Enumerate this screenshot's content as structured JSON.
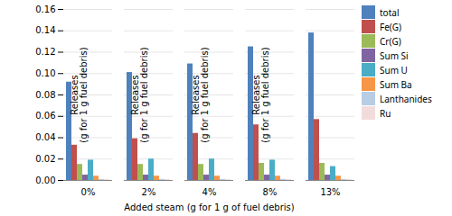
{
  "chart_data": {
    "type": "bar",
    "categories": [
      "0%",
      "2%",
      "4%",
      "8%",
      "13%"
    ],
    "series": [
      {
        "name": "total",
        "color": "#4F81BD",
        "values": [
          0.092,
          0.101,
          0.109,
          0.125,
          0.138
        ]
      },
      {
        "name": "Fe(G)",
        "color": "#C0504D",
        "values": [
          0.033,
          0.039,
          0.044,
          0.052,
          0.057
        ]
      },
      {
        "name": "Cr(G)",
        "color": "#9BBB59",
        "values": [
          0.015,
          0.015,
          0.015,
          0.016,
          0.016
        ]
      },
      {
        "name": "Sum Si",
        "color": "#8064A2",
        "values": [
          0.005,
          0.005,
          0.005,
          0.005,
          0.005
        ]
      },
      {
        "name": "Sum U",
        "color": "#4BACC6",
        "values": [
          0.019,
          0.02,
          0.02,
          0.019,
          0.013
        ]
      },
      {
        "name": "Sum Ba",
        "color": "#F79646",
        "values": [
          0.004,
          0.004,
          0.004,
          0.004,
          0.004
        ]
      },
      {
        "name": "Lanthanides",
        "color": "#B8CCE4",
        "values": [
          0.001,
          0.001,
          0.001,
          0.001,
          0.001
        ]
      },
      {
        "name": "Ru",
        "color": "#F2DCDB",
        "values": [
          0.001,
          0.001,
          0.001,
          0.001,
          0.001
        ]
      }
    ],
    "xlabel": "Added steam (g for 1 g of fuel debris)",
    "ylabel": "Releases\n(g for 1 g fuel debris)",
    "ylim": [
      0.0,
      0.16
    ],
    "yticks": [
      {
        "value": 0.0,
        "label": "0.00"
      },
      {
        "value": 0.02,
        "label": "0.02"
      },
      {
        "value": 0.04,
        "label": "0.04"
      },
      {
        "value": 0.06,
        "label": "0.06"
      },
      {
        "value": 0.08,
        "label": "0.08"
      },
      {
        "value": 0.1,
        "label": "0.10"
      },
      {
        "value": 0.12,
        "label": "0.12"
      },
      {
        "value": 0.14,
        "label": "0.14"
      },
      {
        "value": 0.16,
        "label": "0.16"
      }
    ],
    "grid": true,
    "legend": "right"
  }
}
